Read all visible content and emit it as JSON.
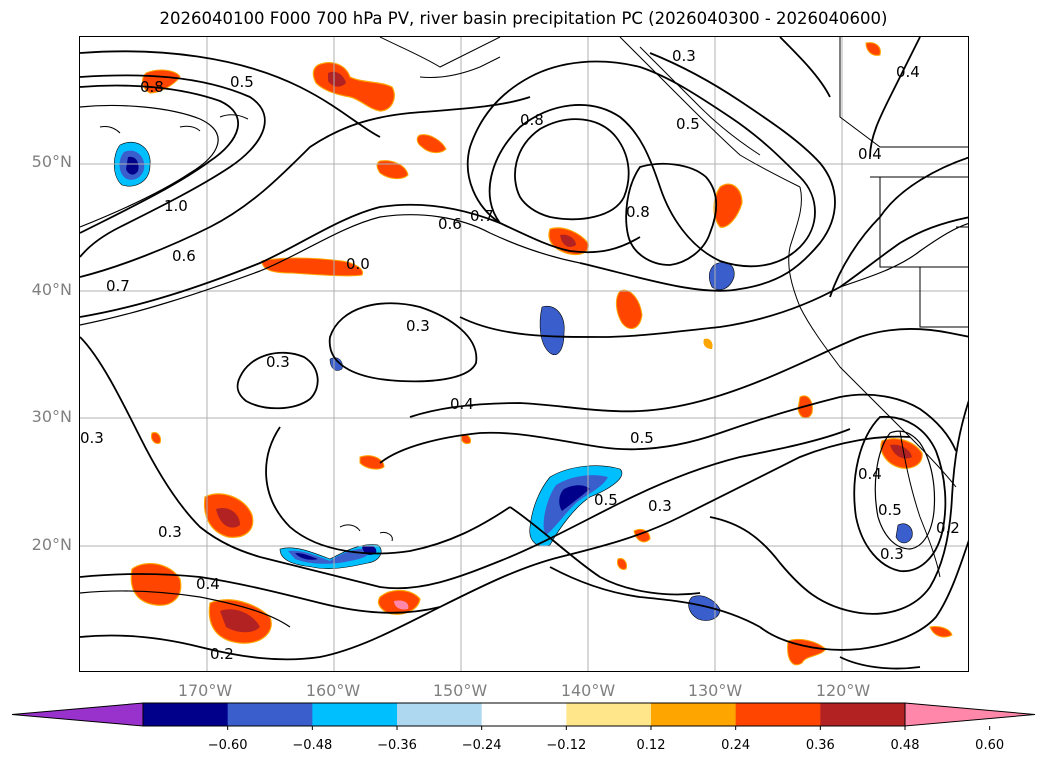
{
  "title": "2026040100 F000 700 hPa PV, river basin precipitation PC (2026040300 - 2026040600)",
  "lat_labels": [
    "50°N",
    "40°N",
    "30°N",
    "20°N"
  ],
  "lon_labels": [
    "170°W",
    "160°W",
    "150°W",
    "140°W",
    "130°W",
    "120°W"
  ],
  "colorbar": {
    "ticks": [
      "−0.60",
      "−0.48",
      "−0.36",
      "−0.24",
      "−0.12",
      "0.12",
      "0.24",
      "0.36",
      "0.48",
      "0.60"
    ],
    "colors": [
      "#9932cc",
      "#00008b",
      "#3a5fcd",
      "#00bfff",
      "#add8f0",
      "#ffffff",
      "#ffe68a",
      "#ffa500",
      "#ff4500",
      "#b22222",
      "#ff88aa"
    ]
  },
  "contour_labels": {
    "c1": "0.8",
    "c2": "0.5",
    "c3": "1.0",
    "c4": "0.6",
    "c5": "0.7",
    "c6": "0.8",
    "c7": "0.5",
    "c8": "0.7",
    "c9": "0.6",
    "c10": "0.8",
    "c11": "0.4",
    "c12": "0.4",
    "c13": "0.0",
    "c14": "0.3",
    "c15": "0.3",
    "c16": "0.4",
    "c17": "0.5",
    "c18": "0.5",
    "c19": "0.3",
    "c20": "0.3",
    "c21": "0.4",
    "c22": "0.2",
    "c23": "0.3",
    "c24": "0.4",
    "c25": "0.5",
    "c26": "0.3",
    "c27": "0.2",
    "c28": "0.3"
  },
  "colors": {
    "grid": "#b0b0b0",
    "contour": "#000000",
    "axis_text": "#808080"
  }
}
